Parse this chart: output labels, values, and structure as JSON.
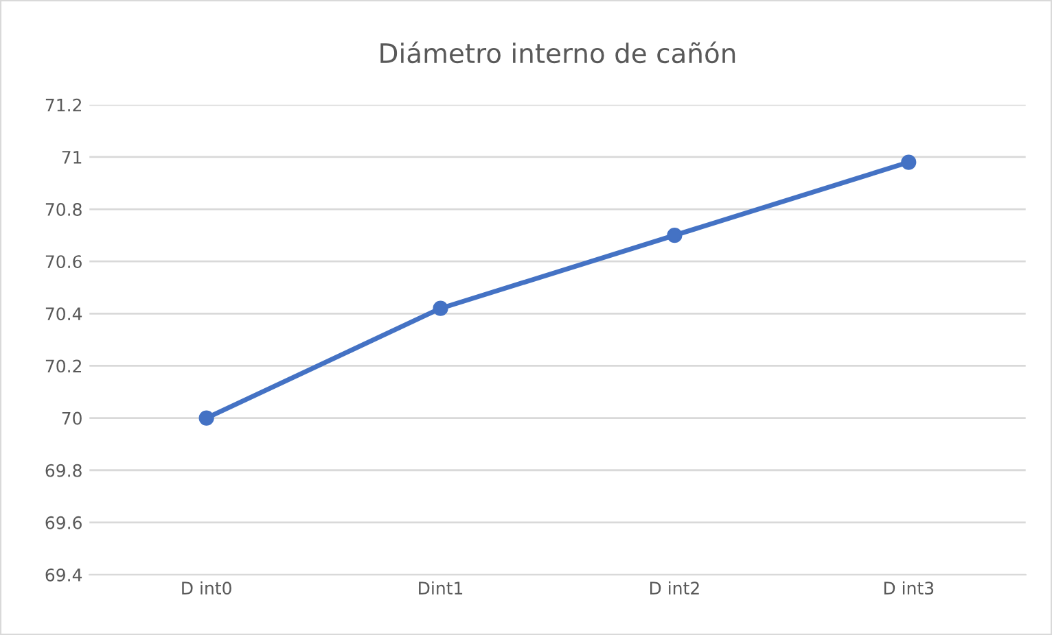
{
  "chart_data": {
    "type": "line",
    "title": "Diámetro interno de cañón",
    "categories": [
      "D int0",
      "Dint1",
      "D int2",
      "D int3"
    ],
    "series": [
      {
        "color": "#4472c4",
        "values": [
          70,
          70.42,
          70.7,
          70.98
        ]
      }
    ],
    "ylim": [
      69.4,
      71.2
    ],
    "yticks": [
      69.4,
      69.6,
      69.8,
      70,
      70.2,
      70.4,
      70.6,
      70.8,
      71,
      71.2
    ],
    "grid": "y",
    "marker": "circle",
    "line_style": "solid",
    "legend": false
  }
}
